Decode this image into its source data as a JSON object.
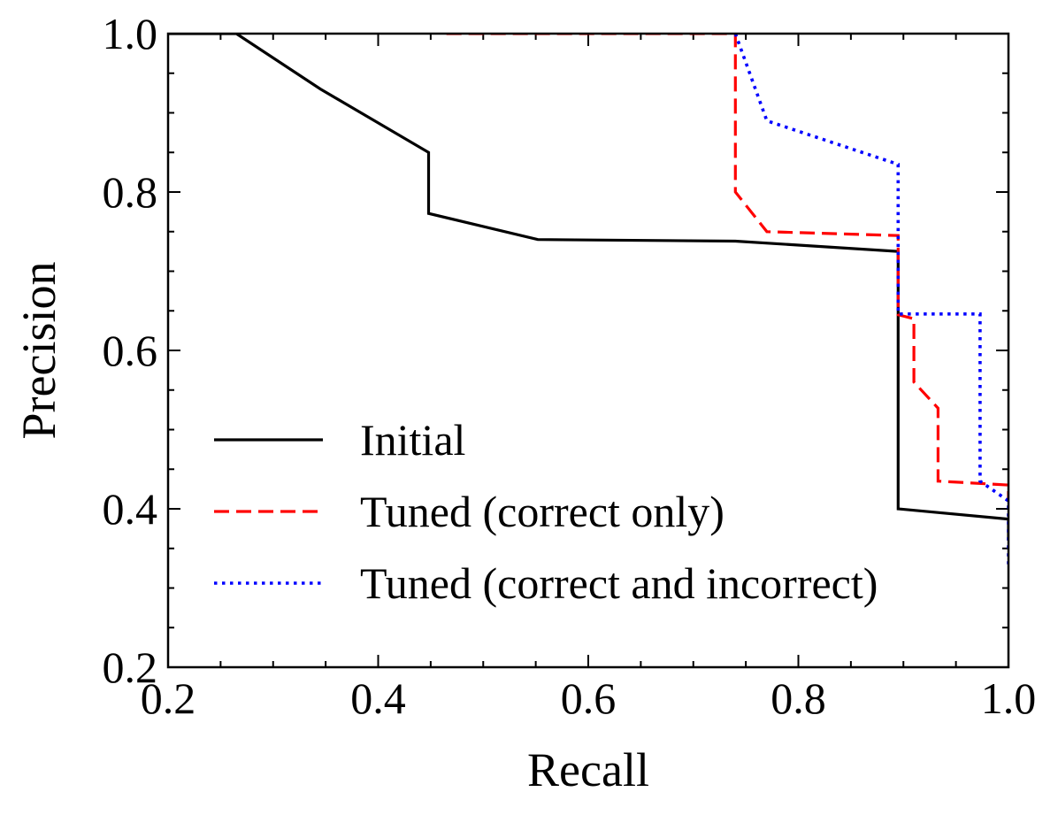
{
  "chart_data": {
    "type": "line",
    "title": "",
    "xlabel": "Recall",
    "ylabel": "Precision",
    "xlim": [
      0.2,
      1.0
    ],
    "ylim": [
      0.2,
      1.0
    ],
    "xticks": [
      "0.2",
      "0.4",
      "0.6",
      "0.8",
      "1.0"
    ],
    "yticks": [
      "0.2",
      "0.4",
      "0.6",
      "0.8",
      "1.0"
    ],
    "legend_position": "lower-left",
    "series": [
      {
        "name": "Initial",
        "color": "#000000",
        "style": "solid",
        "x": [
          0.2,
          0.265,
          0.345,
          0.448,
          0.448,
          0.552,
          0.74,
          0.895,
          0.895,
          1.0,
          1.0
        ],
        "y": [
          1.0,
          1.0,
          0.93,
          0.85,
          0.773,
          0.74,
          0.738,
          0.725,
          0.4,
          0.387,
          0.36
        ]
      },
      {
        "name": "Tuned (correct only)",
        "color": "#ff0000",
        "style": "dashed",
        "x": [
          0.465,
          0.74,
          0.74,
          0.77,
          0.895,
          0.895,
          0.91,
          0.91,
          0.933,
          0.933,
          1.0,
          1.0
        ],
        "y": [
          1.0,
          1.0,
          0.8,
          0.75,
          0.745,
          0.645,
          0.64,
          0.56,
          0.527,
          0.435,
          0.43,
          0.41
        ]
      },
      {
        "name": "Tuned (correct and incorrect)",
        "color": "#0000ff",
        "style": "dotted",
        "x": [
          0.74,
          0.77,
          0.895,
          0.895,
          0.973,
          0.973,
          1.0,
          1.0
        ],
        "y": [
          1.0,
          0.89,
          0.835,
          0.646,
          0.646,
          0.435,
          0.41,
          0.33
        ]
      }
    ]
  }
}
